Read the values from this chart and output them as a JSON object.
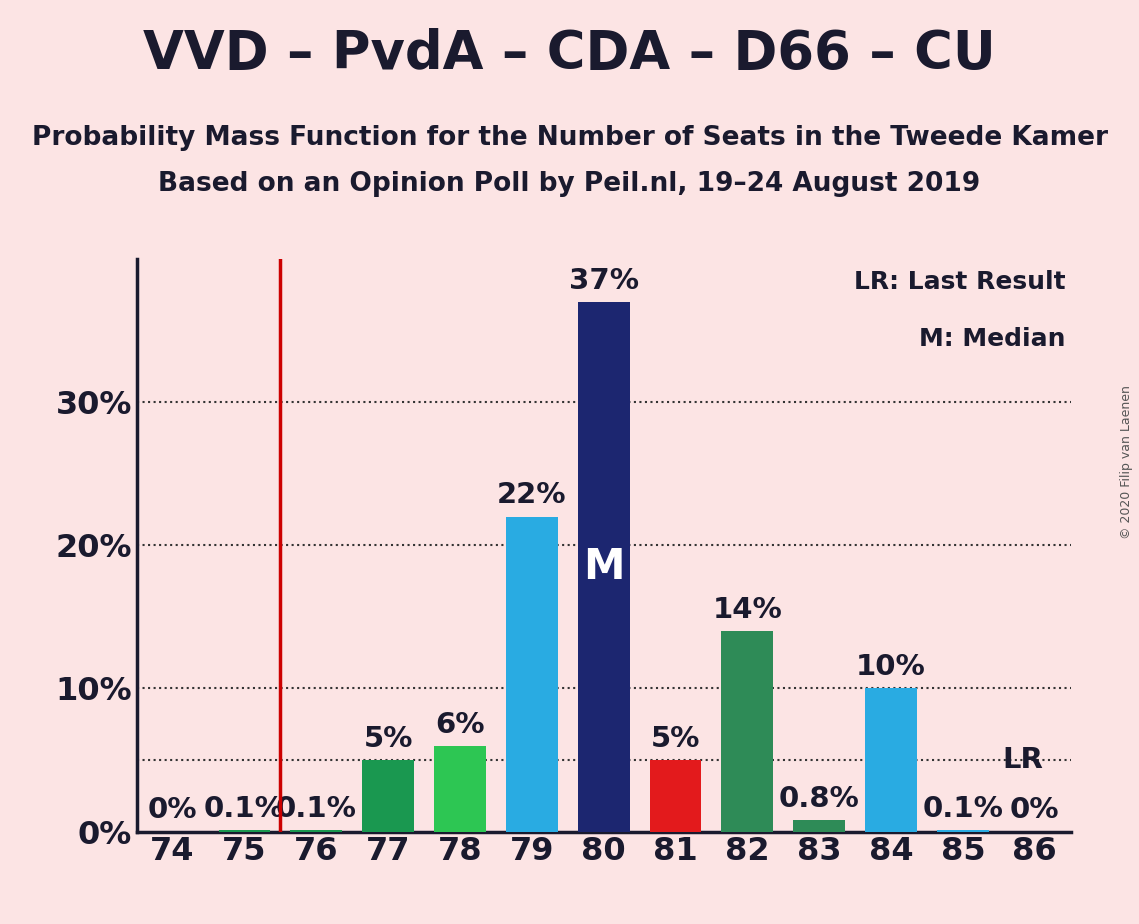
{
  "title": "VVD – PvdA – CDA – D66 – CU",
  "subtitle1": "Probability Mass Function for the Number of Seats in the Tweede Kamer",
  "subtitle2": "Based on an Opinion Poll by Peil.nl, 19–24 August 2019",
  "copyright": "© 2020 Filip van Laenen",
  "legend_lr": "LR: Last Result",
  "legend_m": "M: Median",
  "background_color": "#fce4e4",
  "categories": [
    74,
    75,
    76,
    77,
    78,
    79,
    80,
    81,
    82,
    83,
    84,
    85,
    86
  ],
  "values": [
    0.0,
    0.1,
    0.1,
    5.0,
    6.0,
    22.0,
    37.0,
    5.0,
    14.0,
    0.8,
    10.0,
    0.1,
    0.0
  ],
  "bar_colors": [
    "#1a9850",
    "#1a9850",
    "#1a9850",
    "#1a9850",
    "#2dc653",
    "#29abe2",
    "#1c2670",
    "#e31a1c",
    "#2e8b57",
    "#2e8b57",
    "#29abe2",
    "#29abe2",
    "#29abe2"
  ],
  "median_seat": 80,
  "last_result_seat": 85,
  "vline_seat": 75,
  "vline_color": "#cc0000",
  "ytick_labels": [
    "0%",
    "10%",
    "20%",
    "30%"
  ],
  "ytick_values": [
    0,
    10,
    20,
    30
  ],
  "ylim": [
    0,
    40
  ],
  "title_fontsize": 38,
  "subtitle_fontsize": 19,
  "axis_fontsize": 23,
  "bar_label_fontsize": 21,
  "median_label_fontsize": 30,
  "lr_label_fontsize": 21,
  "grid_color": "#333333",
  "text_color": "#1a1a2e",
  "legend_fontsize": 18,
  "copyright_fontsize": 9,
  "dotted_line_y": 5.0,
  "grid_lines": [
    10,
    20,
    30
  ],
  "bar_width": 0.72
}
